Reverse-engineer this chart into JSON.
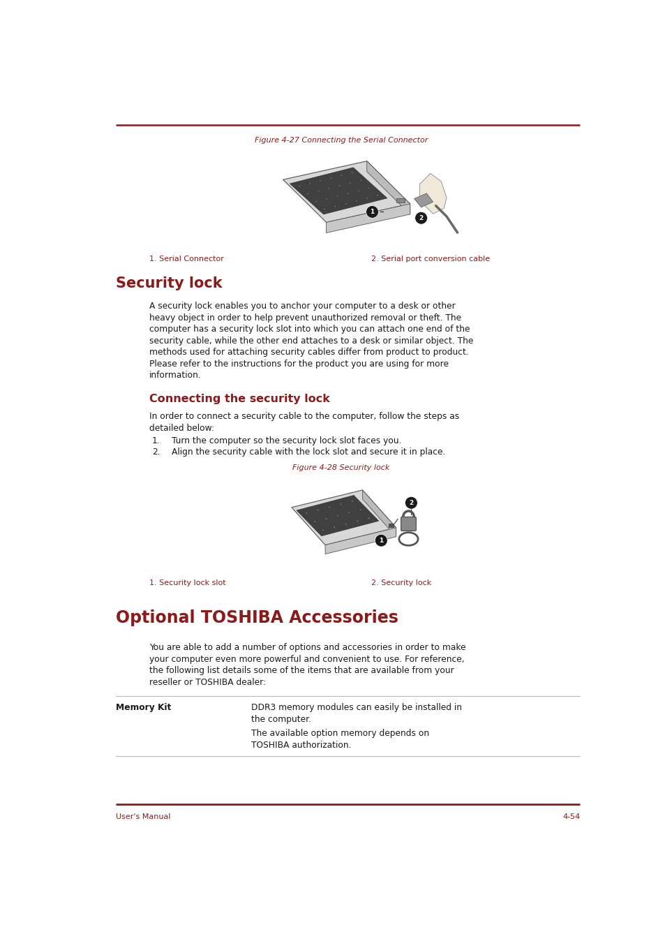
{
  "bg_color": "#ffffff",
  "dark_red": "#8B1A1A",
  "gray_text": "#555555",
  "black": "#1a1a1a",
  "top_line_color": "#8B1A1A",
  "table_line_color": "#bbbbbb",
  "figure_caption_top": "Figure 4-27 Connecting the Serial Connector",
  "caption1_left": "1. Serial Connector",
  "caption1_right": "2. Serial port conversion cable",
  "section1_title": "Security lock",
  "section1_body_lines": [
    "A security lock enables you to anchor your computer to a desk or other",
    "heavy object in order to help prevent unauthorized removal or theft. The",
    "computer has a security lock slot into which you can attach one end of the",
    "security cable, while the other end attaches to a desk or similar object. The",
    "methods used for attaching security cables differ from product to product.",
    "Please refer to the instructions for the product you are using for more",
    "information."
  ],
  "section2_title": "Connecting the security lock",
  "section2_body_lines": [
    "In order to connect a security cable to the computer, follow the steps as",
    "detailed below:"
  ],
  "step1": "Turn the computer so the security lock slot faces you.",
  "step2": "Align the security cable with the lock slot and secure it in place.",
  "figure_caption_bottom": "Figure 4-28 Security lock",
  "caption2_left": "1. Security lock slot",
  "caption2_right": "2. Security lock",
  "section3_title": "Optional TOSHIBA Accessories",
  "section3_body_lines": [
    "You are able to add a number of options and accessories in order to make",
    "your computer even more powerful and convenient to use. For reference,",
    "the following list details some of the items that are available from your",
    "reseller or TOSHIBA dealer:"
  ],
  "table_col1_header": "Memory Kit",
  "table_col2_para1_lines": [
    "DDR3 memory modules can easily be installed in",
    "the computer."
  ],
  "table_col2_para2_lines": [
    "The available option memory depends on",
    "TOSHIBA authorization."
  ],
  "footer_left": "User's Manual",
  "footer_right": "4-54",
  "page_width": 9.54,
  "page_height": 13.45
}
